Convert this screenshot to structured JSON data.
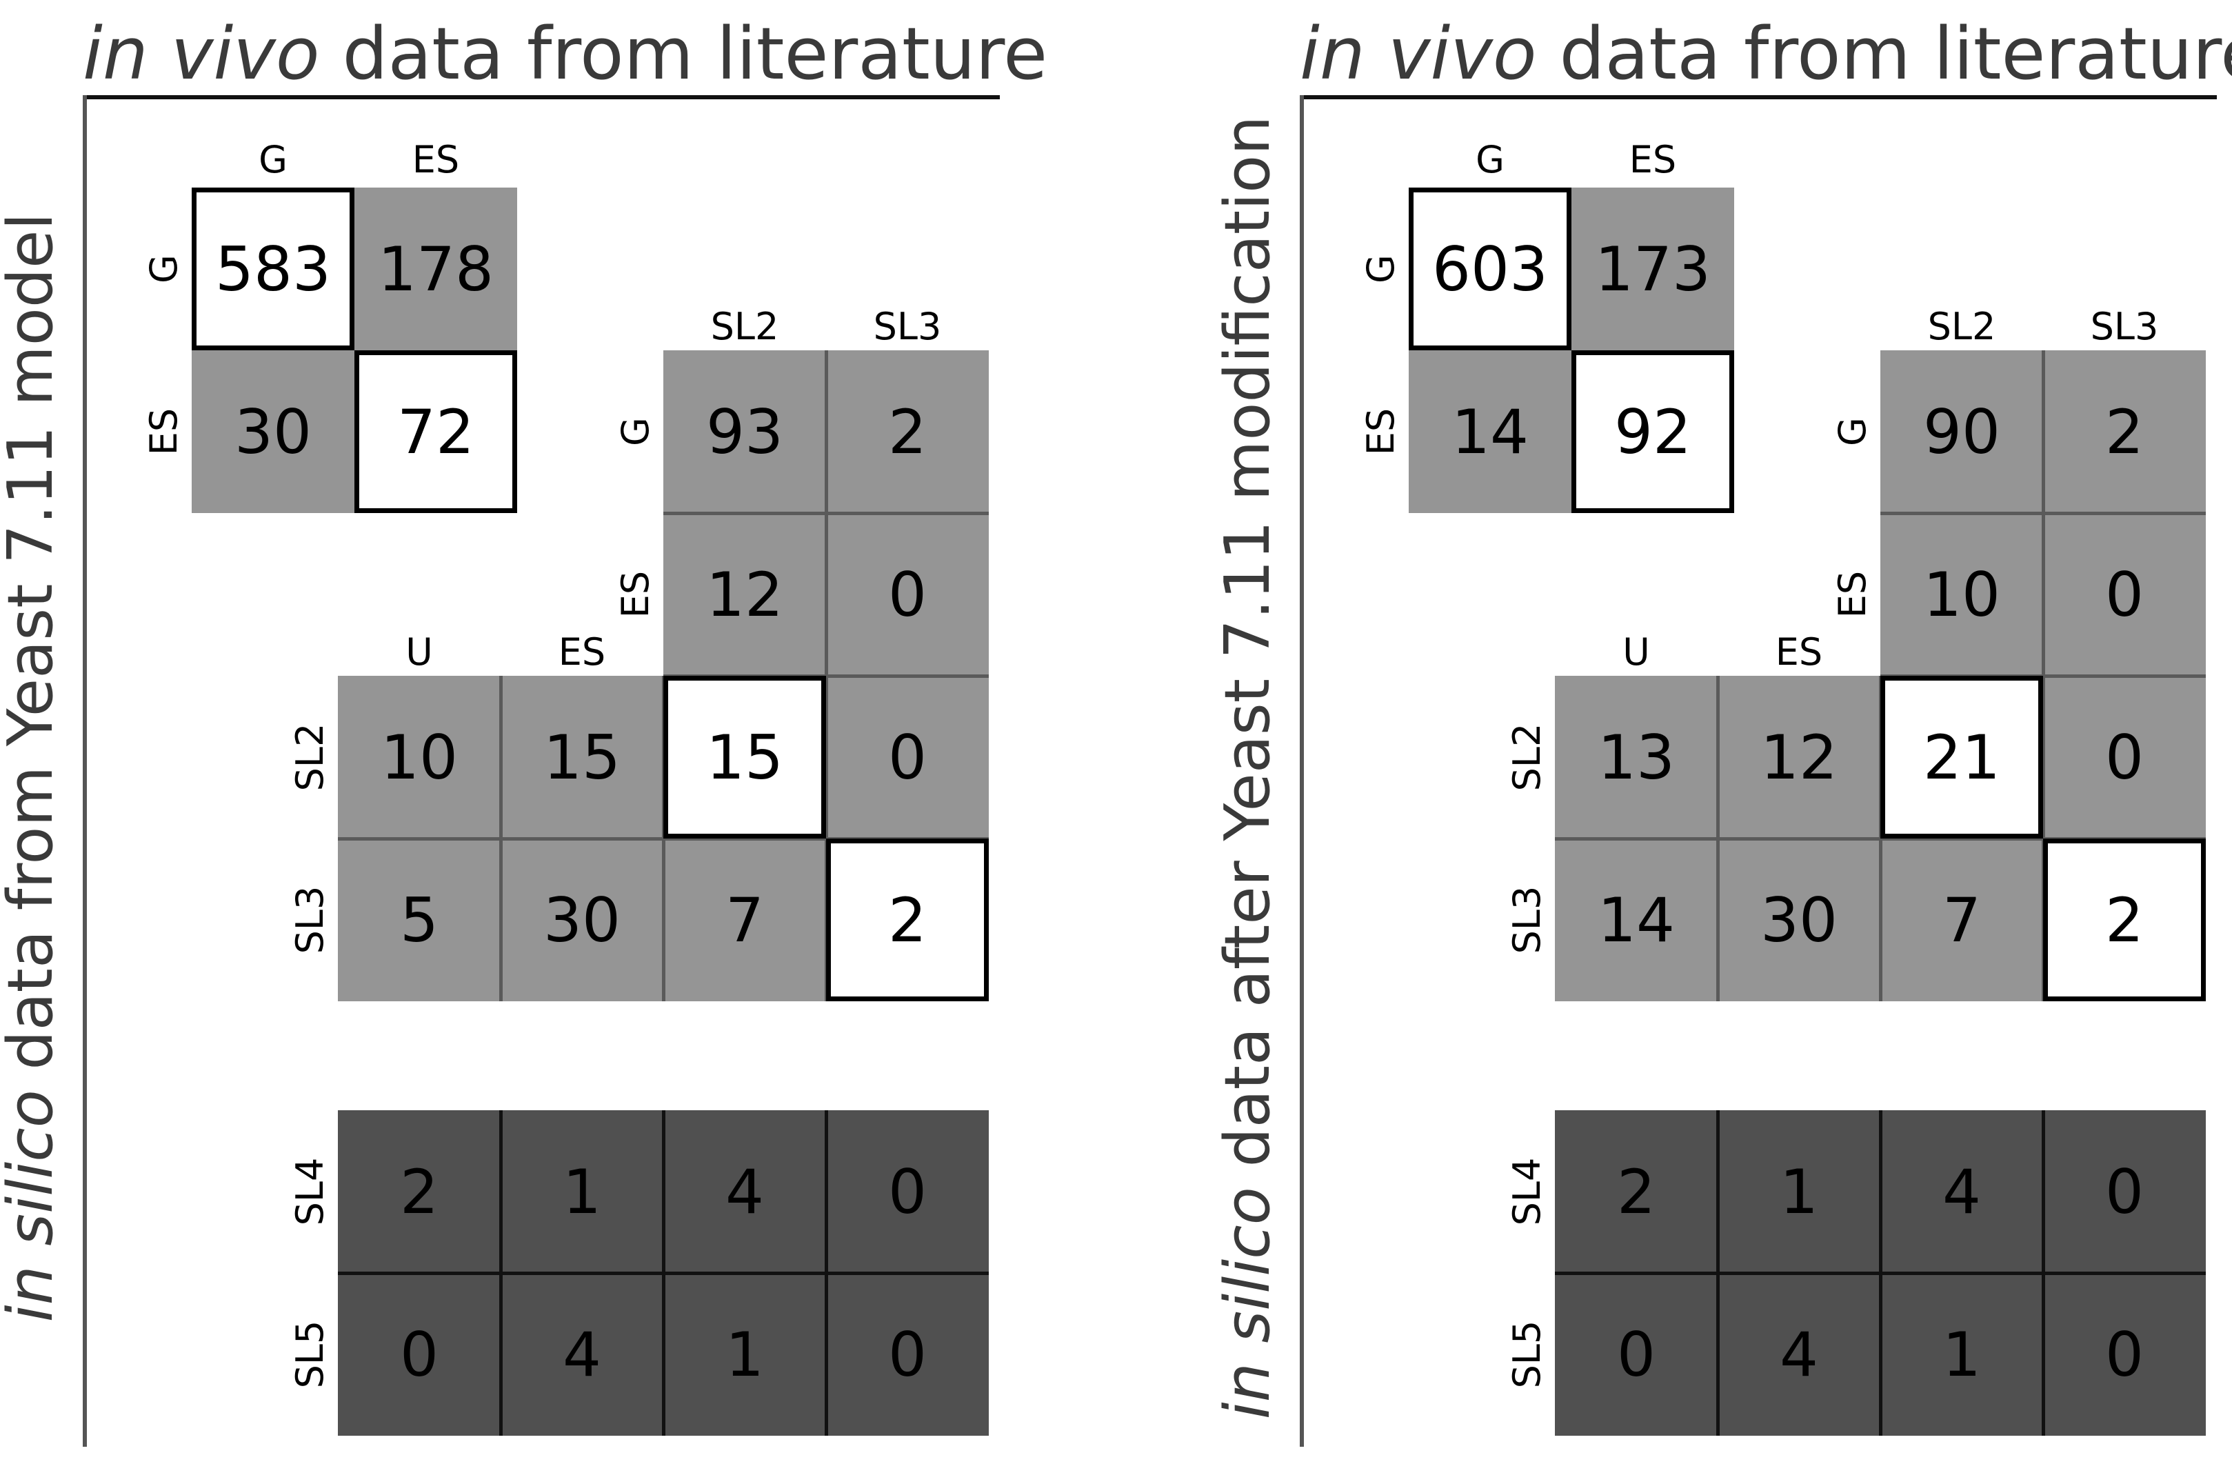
{
  "chart_data": [
    {
      "type": "table",
      "title_italic": "in vivo",
      "title_rest": " data from literature",
      "side_italic": "in silico",
      "side_rest": " data from Yeast 7.11 model",
      "matrix1": {
        "cols": [
          "G",
          "ES"
        ],
        "rows": [
          "G",
          "ES"
        ],
        "values": [
          [
            "583",
            "178"
          ],
          [
            "30",
            "72"
          ]
        ]
      },
      "matrix2": {
        "cols": [
          "SL2",
          "SL3"
        ],
        "rows": [
          "G",
          "ES"
        ],
        "values": [
          [
            "93",
            "2"
          ],
          [
            "12",
            "0"
          ]
        ]
      },
      "matrix3": {
        "cols": [
          "U",
          "ES"
        ],
        "rows": [
          "SL2",
          "SL3"
        ],
        "values": [
          [
            "10",
            "15",
            "15",
            "0"
          ],
          [
            "5",
            "30",
            "7",
            "2"
          ]
        ]
      },
      "matrix4": {
        "rows": [
          "SL4",
          "SL5"
        ],
        "values": [
          [
            "2",
            "1",
            "4",
            "0"
          ],
          [
            "0",
            "4",
            "1",
            "0"
          ]
        ]
      }
    },
    {
      "type": "table",
      "title_italic": "in vivo",
      "title_rest": " data from literature",
      "side_italic": "in silico",
      "side_rest": " data after Yeast 7.11 modification",
      "matrix1": {
        "cols": [
          "G",
          "ES"
        ],
        "rows": [
          "G",
          "ES"
        ],
        "values": [
          [
            "603",
            "173"
          ],
          [
            "14",
            "92"
          ]
        ]
      },
      "matrix2": {
        "cols": [
          "SL2",
          "SL3"
        ],
        "rows": [
          "G",
          "ES"
        ],
        "values": [
          [
            "90",
            "2"
          ],
          [
            "10",
            "0"
          ]
        ]
      },
      "matrix3": {
        "cols": [
          "U",
          "ES"
        ],
        "rows": [
          "SL2",
          "SL3"
        ],
        "values": [
          [
            "13",
            "12",
            "21",
            "0"
          ],
          [
            "14",
            "30",
            "7",
            "2"
          ]
        ]
      },
      "matrix4": {
        "rows": [
          "SL4",
          "SL5"
        ],
        "values": [
          [
            "2",
            "1",
            "4",
            "0"
          ],
          [
            "0",
            "4",
            "1",
            "0"
          ]
        ]
      }
    }
  ],
  "colors": {
    "light_cell": "#959595",
    "dark_cell": "#505050",
    "highlight_cell": "#ffffff"
  }
}
